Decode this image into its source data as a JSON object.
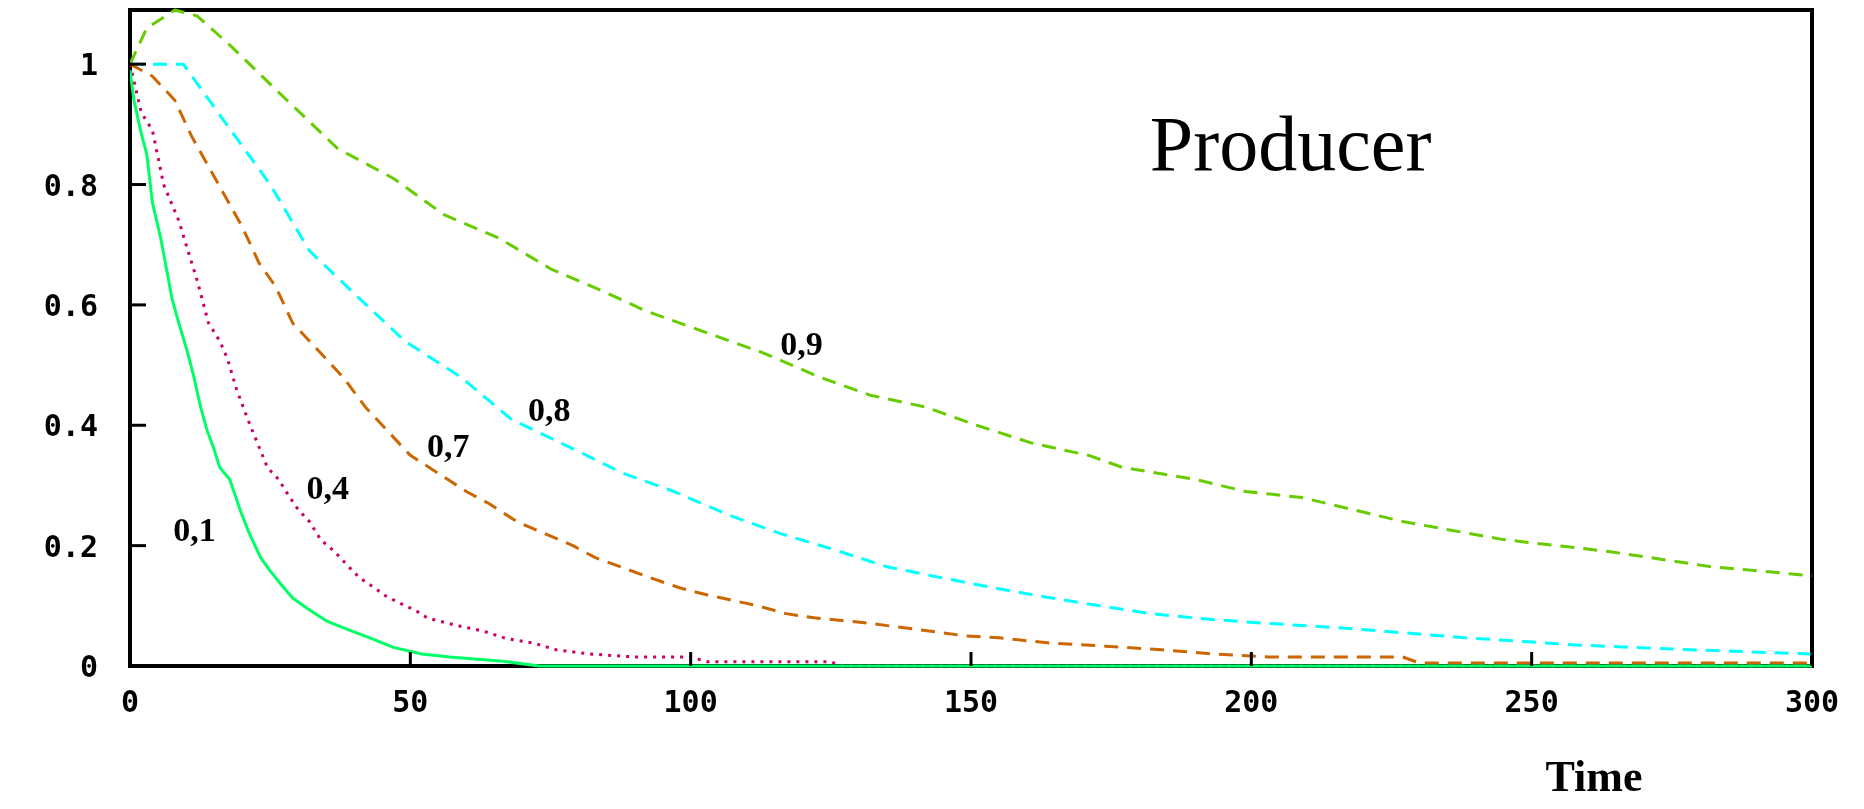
{
  "chart_data": {
    "type": "line",
    "title": "Producer",
    "xlabel": "Time",
    "xlim": [
      0,
      300
    ],
    "xticks": [
      0,
      50,
      100,
      150,
      200,
      250,
      300
    ],
    "ylim": [
      0,
      1.09
    ],
    "yticks": [
      0,
      0.2,
      0.4,
      0.6,
      0.8,
      1
    ],
    "grid": false,
    "marker": "none",
    "series": [
      {
        "name": "0,9",
        "color": "#66cc00",
        "line_style": "dashed",
        "x": [
          0,
          3,
          8,
          12,
          18,
          28,
          37,
          47,
          56,
          66,
          75,
          85,
          92,
          104,
          113,
          123,
          132,
          142,
          151,
          161,
          171,
          177,
          190,
          199,
          209,
          227,
          245,
          264,
          282,
          300
        ],
        "values": [
          1,
          1.06,
          1.09,
          1.08,
          1.03,
          0.94,
          0.86,
          0.81,
          0.75,
          0.71,
          0.66,
          0.62,
          0.59,
          0.55,
          0.52,
          0.48,
          0.45,
          0.43,
          0.4,
          0.37,
          0.35,
          0.33,
          0.31,
          0.29,
          0.28,
          0.24,
          0.21,
          0.19,
          0.165,
          0.15
        ]
      },
      {
        "name": "0,8",
        "color": "#00ffff",
        "line_style": "dashed",
        "x": [
          0,
          9.5,
          18,
          25,
          32,
          41,
          49,
          59,
          68,
          77,
          88,
          97,
          107,
          116,
          125,
          135,
          144,
          154,
          163,
          173,
          182,
          192,
          201,
          218,
          238,
          258,
          278,
          300
        ],
        "values": [
          1,
          1,
          0.89,
          0.8,
          0.69,
          0.61,
          0.54,
          0.48,
          0.41,
          0.37,
          0.32,
          0.29,
          0.25,
          0.22,
          0.195,
          0.165,
          0.148,
          0.13,
          0.115,
          0.1,
          0.087,
          0.078,
          0.072,
          0.062,
          0.047,
          0.035,
          0.027,
          0.02
        ]
      },
      {
        "name": "0,7",
        "color": "#cc6600",
        "line_style": "dashed",
        "x": [
          0,
          4,
          8,
          11,
          14,
          17,
          20,
          23,
          26,
          29,
          33,
          38,
          42,
          46,
          50,
          55,
          60,
          64,
          69,
          74,
          79,
          83,
          88,
          93,
          98,
          103,
          107,
          112,
          117,
          122,
          131,
          141,
          149,
          155,
          164,
          174,
          184,
          193,
          203,
          227,
          230,
          300
        ],
        "values": [
          1,
          0.98,
          0.94,
          0.88,
          0.83,
          0.78,
          0.73,
          0.67,
          0.63,
          0.57,
          0.53,
          0.48,
          0.43,
          0.39,
          0.35,
          0.32,
          0.29,
          0.27,
          0.24,
          0.22,
          0.2,
          0.18,
          0.163,
          0.146,
          0.13,
          0.118,
          0.11,
          0.1,
          0.087,
          0.08,
          0.072,
          0.06,
          0.05,
          0.047,
          0.038,
          0.033,
          0.027,
          0.02,
          0.015,
          0.015,
          0.005,
          0.005
        ]
      },
      {
        "name": "0,4",
        "color": "#cc0066",
        "line_style": "dotted",
        "x": [
          0,
          2,
          4,
          6,
          8.7,
          10,
          12,
          14,
          16,
          17.4,
          19,
          21,
          24.5,
          26.5,
          28.5,
          30,
          32,
          34,
          36.5,
          39,
          41,
          43.6,
          45.5,
          48,
          51,
          53,
          58,
          63,
          67,
          72,
          76,
          82,
          90,
          100,
          103,
          125,
          127,
          300
        ],
        "values": [
          1,
          0.92,
          0.89,
          0.8,
          0.74,
          0.7,
          0.64,
          0.57,
          0.54,
          0.51,
          0.46,
          0.41,
          0.33,
          0.31,
          0.28,
          0.26,
          0.24,
          0.21,
          0.19,
          0.165,
          0.146,
          0.13,
          0.117,
          0.105,
          0.092,
          0.08,
          0.068,
          0.058,
          0.046,
          0.038,
          0.027,
          0.02,
          0.015,
          0.015,
          0.007,
          0.007,
          0,
          0
        ]
      },
      {
        "name": "0,1",
        "color": "#00ff66",
        "line_style": "solid",
        "x": [
          0,
          0.7,
          2,
          3,
          4,
          5.5,
          6.6,
          7.5,
          8.7,
          10.3,
          11.4,
          12.6,
          13.8,
          15,
          16,
          17.8,
          19.8,
          21.3,
          23.3,
          25,
          27,
          29,
          31.7,
          35,
          39,
          43,
          47,
          52,
          57,
          66.5,
          73,
          300
        ],
        "values": [
          0.99,
          0.94,
          0.885,
          0.85,
          0.77,
          0.71,
          0.655,
          0.61,
          0.57,
          0.52,
          0.48,
          0.43,
          0.39,
          0.36,
          0.33,
          0.31,
          0.255,
          0.22,
          0.18,
          0.158,
          0.135,
          0.113,
          0.095,
          0.075,
          0.06,
          0.046,
          0.031,
          0.02,
          0.015,
          0.008,
          0,
          0
        ]
      }
    ]
  }
}
